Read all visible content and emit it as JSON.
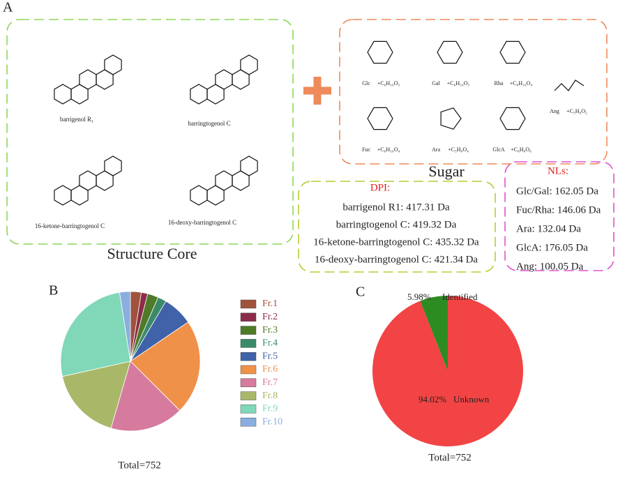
{
  "panel_a": {
    "label": "A",
    "structures": [
      {
        "name": "barrigenol R₁"
      },
      {
        "name": "barringtogenol C"
      },
      {
        "name": "16-ketone-barringtogenol C"
      },
      {
        "name": "16-deoxy-barringtogenol C"
      }
    ],
    "structure_title": "Structure Core",
    "sugars": [
      {
        "name": "Glc",
        "formula": "+C₆H₁₀O₅"
      },
      {
        "name": "Gal",
        "formula": "+C₆H₁₀O₅"
      },
      {
        "name": "Rha",
        "formula": "+C₆H₁₀O₄"
      },
      {
        "name": "Fuc",
        "formula": "+C₆H₁₀O₄"
      },
      {
        "name": "Ara",
        "formula": "+C₅H₈O₄"
      },
      {
        "name": "GlcA",
        "formula": "+C₆H₈O₆"
      },
      {
        "name": "Ang",
        "formula": "+C₅H₆O₂"
      }
    ],
    "sugar_title": "Sugar",
    "dpi": {
      "title": "DPI:",
      "items": [
        "barrigenol R1: 417.31 Da",
        "barringtogenol C: 419.32 Da",
        "16-ketone-barringtogenol C: 435.32 Da",
        "16-deoxy-barringtogenol C: 421.34 Da"
      ]
    },
    "nls": {
      "title": "NLs:",
      "items": [
        "Glc/Gal: 162.05 Da",
        "Fuc/Rha: 146.06 Da",
        "Ara: 132.04 Da",
        "GlcA: 176.05 Da",
        "Ang: 100.05 Da"
      ]
    }
  },
  "chart_data": [
    {
      "type": "pie",
      "label": "B",
      "categories": [
        "Fr.1",
        "Fr.2",
        "Fr.3",
        "Fr.4",
        "Fr.5",
        "Fr.6",
        "Fr.7",
        "Fr.8",
        "Fr.9",
        "Fr.10"
      ],
      "values": [
        2.5,
        1.5,
        2.5,
        2,
        7,
        22,
        17,
        17,
        26,
        2.5
      ],
      "colors": [
        "#a0523c",
        "#8b2d4a",
        "#4f7a28",
        "#3a8a6a",
        "#3f62a8",
        "#f0914a",
        "#d67a9e",
        "#a8b868",
        "#80d8b8",
        "#8aaee0"
      ],
      "legend": "right",
      "note": "Total=752"
    },
    {
      "type": "pie",
      "label": "C",
      "categories": [
        "Unknown",
        "Identified"
      ],
      "values": [
        94.02,
        5.98
      ],
      "value_labels": [
        "94.02%",
        "5.98%"
      ],
      "colors": [
        "#f24444",
        "#2e8b22"
      ],
      "note": "Total=752"
    }
  ]
}
